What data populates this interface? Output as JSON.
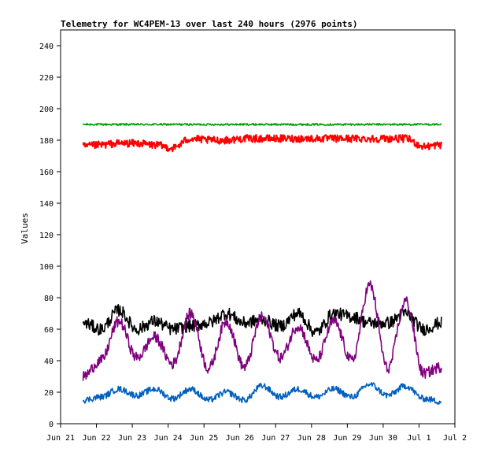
{
  "chart_data": {
    "type": "line",
    "title": "Telemetry for WC4PEM-13 over last 240 hours (2976 points)",
    "xlabel": "",
    "ylabel": "Values",
    "x_axis": {
      "type": "date",
      "range": [
        "2025-06-21",
        "2025-07-02"
      ],
      "tick_labels": [
        "Jun 21",
        "Jun 22",
        "Jun 23",
        "Jun 24",
        "Jun 25",
        "Jun 26",
        "Jun 27",
        "Jun 28",
        "Jun 29",
        "Jun 30",
        "Jul 1",
        "Jul 2"
      ],
      "data_range": [
        "2025-06-21T15:00",
        "2025-07-01T15:00"
      ]
    },
    "y_axis": {
      "range": [
        0,
        250
      ],
      "ticks": [
        0,
        20,
        40,
        60,
        80,
        100,
        120,
        140,
        160,
        180,
        200,
        220,
        240
      ]
    },
    "grid": false,
    "legend": "none",
    "series": [
      {
        "color": "#00a000",
        "x_dates": [
          "2025-06-21T15:00",
          "2025-06-22T03:00",
          "2025-06-22T15:00",
          "2025-06-23T03:00",
          "2025-06-23T15:00",
          "2025-06-24T03:00",
          "2025-06-24T15:00",
          "2025-06-25T03:00",
          "2025-06-25T15:00",
          "2025-06-26T03:00",
          "2025-06-26T15:00",
          "2025-06-27T03:00",
          "2025-06-27T15:00",
          "2025-06-28T03:00",
          "2025-06-28T15:00",
          "2025-06-29T03:00",
          "2025-06-29T15:00",
          "2025-06-30T03:00",
          "2025-06-30T15:00",
          "2025-07-01T03:00",
          "2025-07-01T15:00"
        ],
        "values": [
          190,
          190,
          190,
          190,
          190,
          190,
          190,
          190,
          190,
          190,
          190,
          190,
          190,
          190,
          190,
          190,
          190,
          190,
          190,
          190,
          190
        ]
      },
      {
        "color": "#ff0000",
        "x_dates": [
          "2025-06-21T15:00",
          "2025-06-22T03:00",
          "2025-06-22T15:00",
          "2025-06-23T03:00",
          "2025-06-23T15:00",
          "2025-06-24T03:00",
          "2025-06-24T15:00",
          "2025-06-25T03:00",
          "2025-06-25T15:00",
          "2025-06-26T03:00",
          "2025-06-26T15:00",
          "2025-06-27T03:00",
          "2025-06-27T15:00",
          "2025-06-28T03:00",
          "2025-06-28T15:00",
          "2025-06-29T03:00",
          "2025-06-29T15:00",
          "2025-06-30T03:00",
          "2025-06-30T15:00",
          "2025-07-01T03:00",
          "2025-07-01T15:00"
        ],
        "values": [
          176,
          177,
          178,
          178,
          177,
          175,
          181,
          180,
          180,
          181,
          181,
          181,
          181,
          181,
          181,
          181,
          181,
          181,
          181,
          176,
          177
        ]
      },
      {
        "color": "#000000",
        "x_dates": [
          "2025-06-21T15:00",
          "2025-06-22T03:00",
          "2025-06-22T15:00",
          "2025-06-23T03:00",
          "2025-06-23T15:00",
          "2025-06-24T03:00",
          "2025-06-24T15:00",
          "2025-06-25T03:00",
          "2025-06-25T15:00",
          "2025-06-26T03:00",
          "2025-06-26T15:00",
          "2025-06-27T03:00",
          "2025-06-27T15:00",
          "2025-06-28T03:00",
          "2025-06-28T15:00",
          "2025-06-29T03:00",
          "2025-06-29T15:00",
          "2025-06-30T03:00",
          "2025-06-30T15:00",
          "2025-07-01T03:00",
          "2025-07-01T15:00"
        ],
        "values": [
          64,
          60,
          72,
          60,
          65,
          60,
          62,
          64,
          70,
          64,
          66,
          62,
          70,
          58,
          70,
          68,
          64,
          64,
          70,
          60,
          64
        ]
      },
      {
        "color": "#800080",
        "x_dates": [
          "2025-06-21T15:00",
          "2025-06-22T03:00",
          "2025-06-22T15:00",
          "2025-06-23T03:00",
          "2025-06-23T15:00",
          "2025-06-24T03:00",
          "2025-06-24T15:00",
          "2025-06-25T03:00",
          "2025-06-25T15:00",
          "2025-06-26T03:00",
          "2025-06-26T15:00",
          "2025-06-27T03:00",
          "2025-06-27T15:00",
          "2025-06-28T03:00",
          "2025-06-28T15:00",
          "2025-06-29T03:00",
          "2025-06-29T15:00",
          "2025-06-30T03:00",
          "2025-06-30T15:00",
          "2025-07-01T03:00",
          "2025-07-01T15:00"
        ],
        "values": [
          30,
          40,
          65,
          42,
          55,
          38,
          70,
          35,
          65,
          36,
          68,
          42,
          62,
          40,
          65,
          40,
          88,
          35,
          78,
          32,
          36
        ]
      },
      {
        "color": "#0060c0",
        "x_dates": [
          "2025-06-21T15:00",
          "2025-06-22T03:00",
          "2025-06-22T15:00",
          "2025-06-23T03:00",
          "2025-06-23T15:00",
          "2025-06-24T03:00",
          "2025-06-24T15:00",
          "2025-06-25T03:00",
          "2025-06-25T15:00",
          "2025-06-26T03:00",
          "2025-06-26T15:00",
          "2025-06-27T03:00",
          "2025-06-27T15:00",
          "2025-06-28T03:00",
          "2025-06-28T15:00",
          "2025-06-29T03:00",
          "2025-06-29T15:00",
          "2025-06-30T03:00",
          "2025-06-30T15:00",
          "2025-07-01T03:00",
          "2025-07-01T15:00"
        ],
        "values": [
          15,
          17,
          22,
          18,
          22,
          16,
          22,
          15,
          20,
          15,
          24,
          17,
          22,
          17,
          22,
          17,
          25,
          18,
          24,
          16,
          14
        ]
      }
    ]
  }
}
